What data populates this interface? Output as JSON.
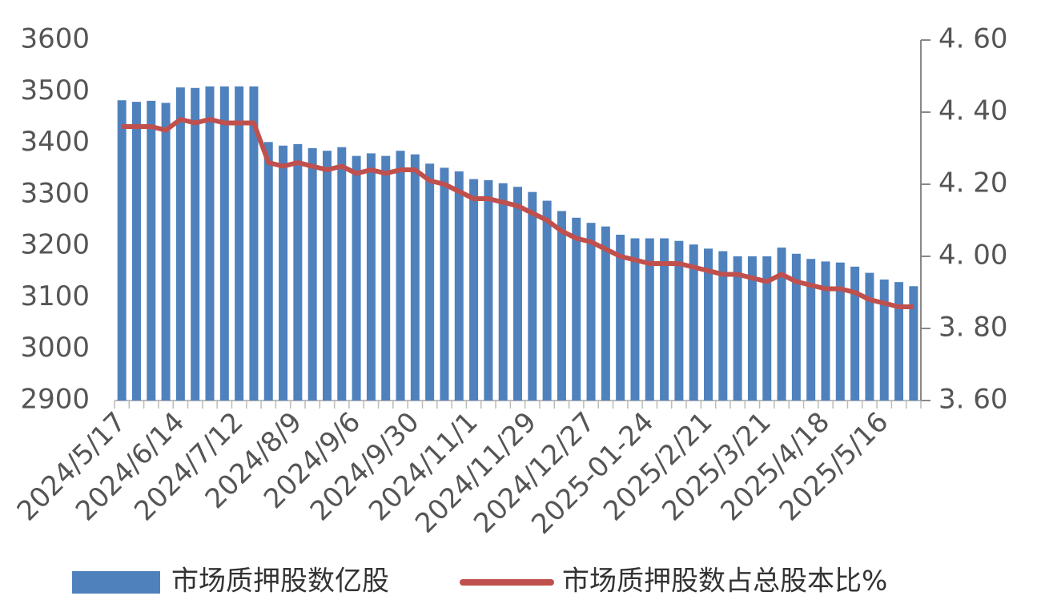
{
  "chart_data": {
    "type": "bar",
    "categories": [
      "2024/5/17",
      null,
      null,
      null,
      "2024/6/14",
      null,
      null,
      null,
      "2024/7/12",
      null,
      null,
      null,
      "2024/8/9",
      null,
      null,
      null,
      "2024/9/6",
      null,
      null,
      null,
      "2024/9/30",
      null,
      null,
      null,
      "2024/11/1",
      null,
      null,
      null,
      "2024/11/29",
      null,
      null,
      null,
      "2024/12/27",
      null,
      null,
      null,
      "2025-01-24",
      null,
      null,
      null,
      "2025/2/21",
      null,
      null,
      null,
      "2025/3/21",
      null,
      null,
      null,
      "2025/4/18",
      null,
      null,
      null,
      "2025/5/16",
      null,
      null
    ],
    "series": [
      {
        "name": "市场质押股数亿股",
        "type": "bar",
        "color": "#4f81bd",
        "values": [
          3483,
          3480,
          3482,
          3478,
          3508,
          3507,
          3510,
          3510,
          3510,
          3510,
          3402,
          3395,
          3398,
          3390,
          3385,
          3392,
          3375,
          3380,
          3375,
          3385,
          3378,
          3360,
          3352,
          3345,
          3330,
          3328,
          3322,
          3315,
          3305,
          3288,
          3268,
          3255,
          3245,
          3238,
          3222,
          3215,
          3215,
          3215,
          3210,
          3203,
          3195,
          3190,
          3180,
          3180,
          3180,
          3197,
          3185,
          3175,
          3170,
          3168,
          3160,
          3148,
          3135,
          3130,
          3122
        ]
      },
      {
        "name": "市场质押股数占总股本比%",
        "type": "line",
        "axis": "y2",
        "color": "#c0504d",
        "values": [
          4.36,
          4.36,
          4.36,
          4.35,
          4.38,
          4.37,
          4.38,
          4.37,
          4.37,
          4.37,
          4.26,
          4.25,
          4.26,
          4.25,
          4.24,
          4.25,
          4.23,
          4.24,
          4.23,
          4.24,
          4.24,
          4.21,
          4.2,
          4.18,
          4.16,
          4.16,
          4.15,
          4.14,
          4.12,
          4.1,
          4.07,
          4.05,
          4.04,
          4.02,
          4.0,
          3.99,
          3.98,
          3.98,
          3.98,
          3.97,
          3.96,
          3.95,
          3.95,
          3.94,
          3.93,
          3.95,
          3.93,
          3.92,
          3.91,
          3.91,
          3.9,
          3.88,
          3.87,
          3.86,
          3.86
        ]
      }
    ],
    "ylim": [
      2900,
      3600
    ],
    "yticks": [
      2900,
      3000,
      3100,
      3200,
      3300,
      3400,
      3500,
      3600
    ],
    "y2lim": [
      3.6,
      4.6
    ],
    "y2ticks": [
      {
        "value": 3.6,
        "label": "3. 60"
      },
      {
        "value": 3.8,
        "label": "3. 80"
      },
      {
        "value": 4.0,
        "label": "4. 00"
      },
      {
        "value": 4.2,
        "label": "4. 20"
      },
      {
        "value": 4.4,
        "label": "4. 40"
      },
      {
        "value": 4.6,
        "label": "4. 60"
      }
    ],
    "grid": false,
    "legend": "bottom"
  }
}
